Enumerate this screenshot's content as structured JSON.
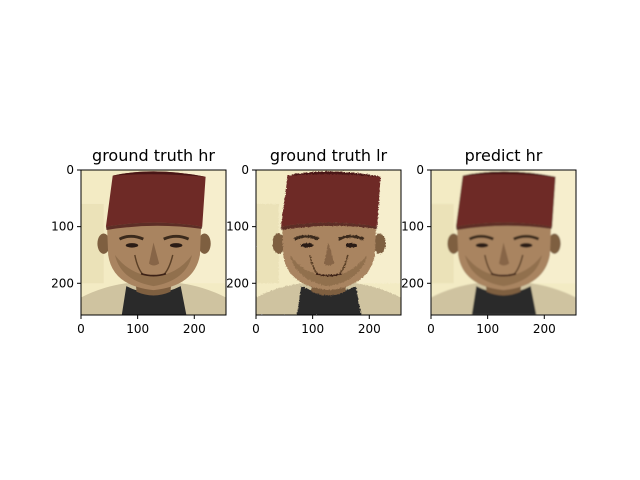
{
  "chart_data": [
    {
      "type": "image",
      "title": "ground truth hr",
      "image_size": [
        256,
        256
      ],
      "xticks": [
        0,
        100,
        200
      ],
      "yticks": [
        0,
        100,
        200
      ],
      "xlim": [
        0,
        256
      ],
      "ylim": [
        256,
        0
      ],
      "quality": "sharp"
    },
    {
      "type": "image",
      "title": "ground truth lr",
      "image_size": [
        256,
        256
      ],
      "xticks": [
        0,
        100,
        200
      ],
      "yticks": [
        0,
        100,
        200
      ],
      "xlim": [
        0,
        256
      ],
      "ylim": [
        256,
        0
      ],
      "quality": "noisy"
    },
    {
      "type": "image",
      "title": "predict hr",
      "image_size": [
        256,
        256
      ],
      "xticks": [
        0,
        100,
        200
      ],
      "yticks": [
        0,
        100,
        200
      ],
      "xlim": [
        0,
        256
      ],
      "ylim": [
        256,
        0
      ],
      "quality": "smooth"
    }
  ],
  "colors": {
    "background_cream": "#f3ebc4",
    "wall_light": "#f7f0d2",
    "fez_red": "#6e2b27",
    "fez_dark": "#4a1816",
    "skin": "#a98460",
    "skin_shadow": "#7e5e40",
    "coat": "#cfc3a0",
    "shirt_dark": "#2a2a2a"
  }
}
